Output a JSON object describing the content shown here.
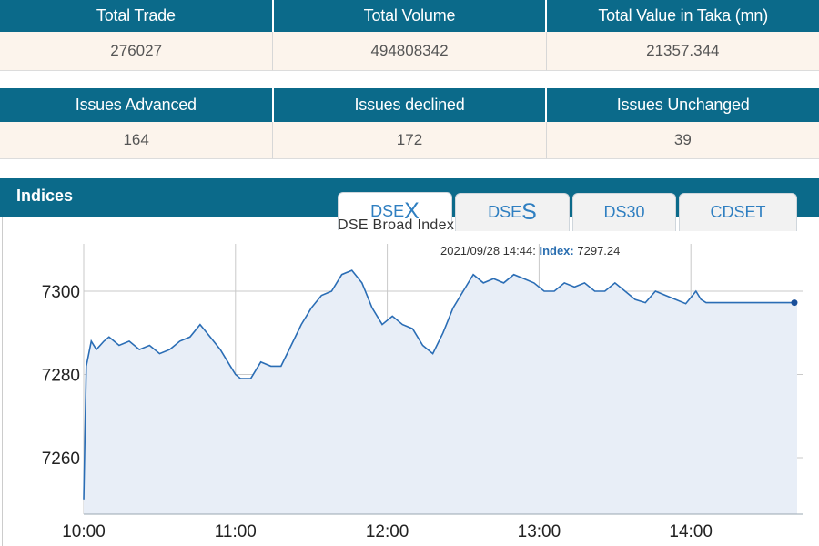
{
  "summary": {
    "headers": [
      "Total Trade",
      "Total Volume",
      "Total Value in Taka (mn)"
    ],
    "values": [
      "276027",
      "494808342",
      "21357.344"
    ]
  },
  "issues": {
    "headers": [
      "Issues Advanced",
      "Issues declined",
      "Issues Unchanged"
    ],
    "values": [
      "164",
      "172",
      "39"
    ]
  },
  "indices": {
    "title": "Indices",
    "tabs": [
      {
        "pre": "DSE",
        "big": "X"
      },
      {
        "pre": "DSE",
        "big": "S"
      },
      {
        "pre": "DS30",
        "big": ""
      },
      {
        "pre": "CDSET",
        "big": ""
      }
    ],
    "active_tab": 0
  },
  "colors": {
    "header_bg": "#0b6a8a",
    "value_bg": "#fcf4ec",
    "line": "#2a6db5",
    "area": "#e8eef7",
    "tab_text": "#2f7fc1"
  },
  "chart_data": {
    "type": "area",
    "title": "DSE Broad Index",
    "tooltip": {
      "time": "2021/09/28 14:44:",
      "label": "Index:",
      "value": "7297.24"
    },
    "x_ticks": [
      "10:00",
      "11:00",
      "12:00",
      "13:00",
      "14:00"
    ],
    "y_ticks": [
      7260,
      7280,
      7300
    ],
    "x_range_min": [
      0,
      282
    ],
    "y_range": [
      7246,
      7312
    ],
    "series": [
      {
        "x_min": [
          0,
          1,
          3,
          5,
          8,
          10,
          14,
          18,
          22,
          26,
          30,
          34,
          38,
          42,
          46,
          50,
          54,
          58,
          60,
          62,
          66,
          70,
          74,
          78,
          82,
          86,
          90,
          94,
          98,
          102,
          106,
          110,
          114,
          118,
          122,
          126,
          130,
          134,
          138,
          142,
          146,
          150,
          154,
          158,
          162,
          166,
          170,
          174,
          178,
          182,
          186,
          190,
          194,
          198,
          202,
          206,
          210,
          214,
          218,
          222,
          226,
          230,
          234,
          238,
          242,
          244,
          246,
          250,
          254,
          258,
          262,
          266,
          270,
          274,
          278,
          282
        ],
        "y": [
          7250,
          7282,
          7288,
          7286,
          7288,
          7289,
          7287,
          7288,
          7286,
          7287,
          7285,
          7286,
          7288,
          7289,
          7292,
          7289,
          7286,
          7282,
          7280,
          7279,
          7279,
          7283,
          7282,
          7282,
          7287,
          7292,
          7296,
          7299,
          7300,
          7304,
          7305,
          7302,
          7296,
          7292,
          7294,
          7292,
          7291,
          7287,
          7285,
          7290,
          7296,
          7300,
          7304,
          7302,
          7303,
          7302,
          7304,
          7303,
          7302,
          7300,
          7300,
          7302,
          7301,
          7302,
          7300,
          7300,
          7302,
          7300,
          7298,
          7297.24,
          7300,
          7299,
          7298,
          7297,
          7300,
          7298,
          7297.24,
          7297.24,
          7297.24,
          7297.24,
          7297.24,
          7297.24,
          7297.24,
          7297.24,
          7297.24,
          7297.24
        ]
      }
    ]
  }
}
